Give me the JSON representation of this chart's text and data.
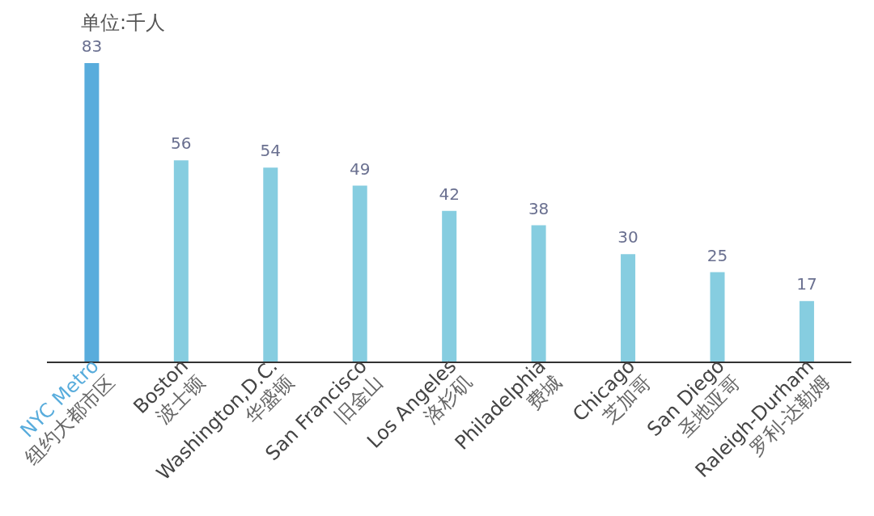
{
  "chart_data": {
    "type": "bar",
    "title": "单位:千人",
    "categories": [
      "NYC Metro\n纽约大都市区",
      "Boston\n波士顿",
      "Washington,D.C.\n华盛顿",
      "San Francisco\n旧金山",
      "Los Angeles\n洛杉矶",
      "Philadelphia\n费城",
      "Chicago\n芝加哥",
      "San Diego\n圣地亚哥",
      "Raleigh-Durham\n罗利-达勒姆"
    ],
    "values": [
      83,
      56,
      54,
      49,
      42,
      38,
      30,
      25,
      17
    ],
    "colors": [
      "#58acdc",
      "#86cde0",
      "#86cde0",
      "#86cde0",
      "#86cde0",
      "#86cde0",
      "#86cde0",
      "#86cde0",
      "#86cde0"
    ],
    "data_labels": true,
    "grid": false,
    "legend": false
  }
}
